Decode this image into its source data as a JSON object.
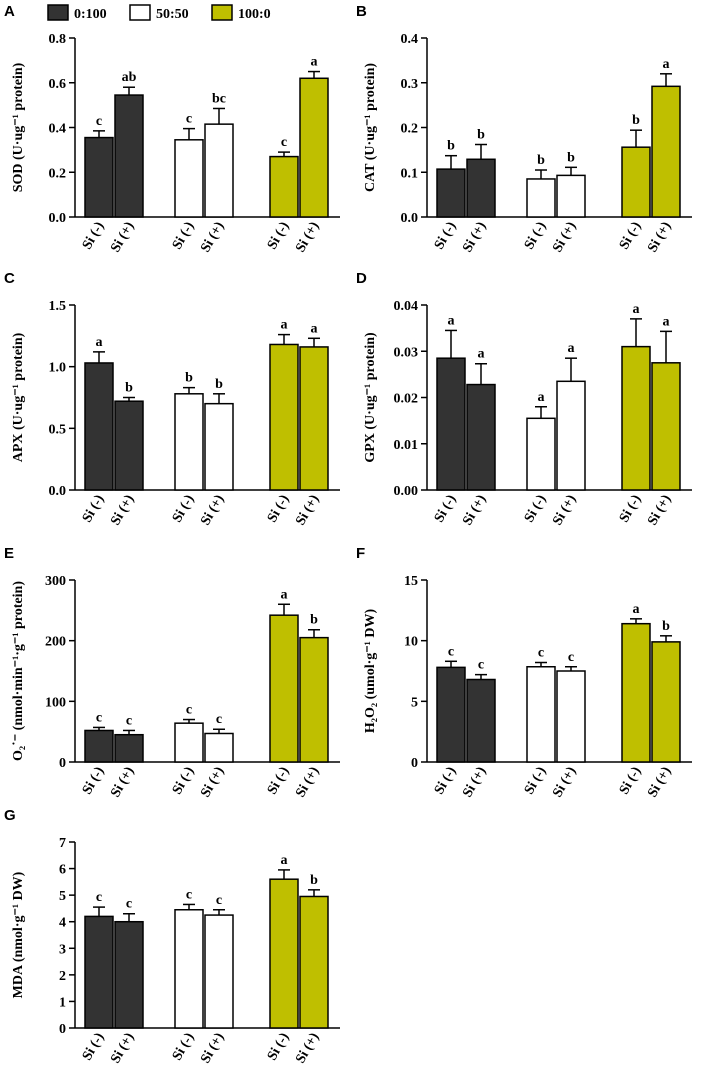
{
  "legend": [
    {
      "name": "0:100",
      "color": "#333333"
    },
    {
      "name": "50:50",
      "color": "#ffffff"
    },
    {
      "name": "100:0",
      "color": "#bfbf00"
    }
  ],
  "chart_data": [
    {
      "type": "bar",
      "panel": "A",
      "ylabel": "SOD (U·ug⁻¹ protein)",
      "categories": [
        "Si (-)",
        "Si (+)"
      ],
      "ylim": [
        0,
        0.8
      ],
      "yticks": [
        {
          "value": 0,
          "label": "0.0"
        },
        0.2,
        0.4,
        0.6,
        0.8
      ],
      "series": [
        {
          "values": [
            0.355,
            0.545
          ],
          "errors": [
            0.03,
            0.035
          ],
          "letters": [
            "c",
            "ab"
          ]
        },
        {
          "values": [
            0.345,
            0.415
          ],
          "errors": [
            0.05,
            0.07
          ],
          "letters": [
            "c",
            "bc"
          ]
        },
        {
          "values": [
            0.27,
            0.62
          ],
          "errors": [
            0.02,
            0.03
          ],
          "letters": [
            "c",
            "a"
          ]
        }
      ]
    },
    {
      "type": "bar",
      "panel": "B",
      "ylabel": "CAT (U·ug⁻¹ protein)",
      "categories": [
        "Si (-)",
        "Si (+)"
      ],
      "ylim": [
        0,
        0.4
      ],
      "yticks": [
        {
          "value": 0,
          "label": "0.0"
        },
        0.1,
        0.2,
        0.3,
        0.4
      ],
      "series": [
        {
          "values": [
            0.107,
            0.129
          ],
          "errors": [
            0.03,
            0.033
          ],
          "letters": [
            "b",
            "b"
          ]
        },
        {
          "values": [
            0.085,
            0.093
          ],
          "errors": [
            0.02,
            0.018
          ],
          "letters": [
            "b",
            "b"
          ]
        },
        {
          "values": [
            0.156,
            0.292
          ],
          "errors": [
            0.038,
            0.028
          ],
          "letters": [
            "b",
            "a"
          ]
        }
      ]
    },
    {
      "type": "bar",
      "panel": "C",
      "ylabel": "APX (U·ug⁻¹ protein)",
      "categories": [
        "Si (-)",
        "Si (+)"
      ],
      "ylim": [
        0,
        1.5
      ],
      "yticks": [
        {
          "value": 0,
          "label": "0.0"
        },
        0.5,
        {
          "value": 1,
          "label": "1.0"
        },
        1.5
      ],
      "series": [
        {
          "values": [
            1.03,
            0.72
          ],
          "errors": [
            0.09,
            0.03
          ],
          "letters": [
            "a",
            "b"
          ]
        },
        {
          "values": [
            0.78,
            0.7
          ],
          "errors": [
            0.05,
            0.08
          ],
          "letters": [
            "b",
            "b"
          ]
        },
        {
          "values": [
            1.18,
            1.16
          ],
          "errors": [
            0.08,
            0.07
          ],
          "letters": [
            "a",
            "a"
          ]
        }
      ]
    },
    {
      "type": "bar",
      "panel": "D",
      "ylabel": "GPX (U·ug⁻¹ protein)",
      "categories": [
        "Si (-)",
        "Si (+)"
      ],
      "ylim": [
        0,
        0.04
      ],
      "yticks": [
        {
          "value": 0,
          "label": "0.00"
        },
        0.01,
        0.02,
        0.03,
        0.04
      ],
      "series": [
        {
          "values": [
            0.0285,
            0.0228
          ],
          "errors": [
            0.006,
            0.0045
          ],
          "letters": [
            "a",
            "a"
          ]
        },
        {
          "values": [
            0.0155,
            0.0235
          ],
          "errors": [
            0.0025,
            0.005
          ],
          "letters": [
            "a",
            "a"
          ]
        },
        {
          "values": [
            0.031,
            0.0275
          ],
          "errors": [
            0.006,
            0.0068
          ],
          "letters": [
            "a",
            "a"
          ]
        }
      ]
    },
    {
      "type": "bar",
      "panel": "E",
      "ylabel": "O₂˙⁻ (nmol·min⁻¹·g⁻¹ protein)",
      "categories": [
        "Si (-)",
        "Si (+)"
      ],
      "ylim": [
        0,
        300
      ],
      "yticks": [
        0,
        100,
        200,
        300
      ],
      "series": [
        {
          "values": [
            52,
            45
          ],
          "errors": [
            5,
            7
          ],
          "letters": [
            "c",
            "c"
          ]
        },
        {
          "values": [
            64,
            47
          ],
          "errors": [
            6,
            7
          ],
          "letters": [
            "c",
            "c"
          ]
        },
        {
          "values": [
            242,
            205
          ],
          "errors": [
            18,
            13
          ],
          "letters": [
            "a",
            "b"
          ]
        }
      ]
    },
    {
      "type": "bar",
      "panel": "F",
      "ylabel": "H₂O₂ (umol·g⁻¹ DW)",
      "categories": [
        "Si (-)",
        "Si (+)"
      ],
      "ylim": [
        0,
        15
      ],
      "yticks": [
        0,
        5,
        10,
        15
      ],
      "series": [
        {
          "values": [
            7.8,
            6.8
          ],
          "errors": [
            0.5,
            0.4
          ],
          "letters": [
            "c",
            "c"
          ]
        },
        {
          "values": [
            7.85,
            7.5
          ],
          "errors": [
            0.35,
            0.35
          ],
          "letters": [
            "c",
            "c"
          ]
        },
        {
          "values": [
            11.4,
            9.9
          ],
          "errors": [
            0.4,
            0.5
          ],
          "letters": [
            "a",
            "b"
          ]
        }
      ]
    },
    {
      "type": "bar",
      "panel": "G",
      "ylabel": "MDA (nmol·g⁻¹ DW)",
      "categories": [
        "Si (-)",
        "Si (+)"
      ],
      "ylim": [
        0,
        7
      ],
      "yticks": [
        0,
        1,
        2,
        3,
        4,
        5,
        6,
        7
      ],
      "series": [
        {
          "values": [
            4.2,
            4.0
          ],
          "errors": [
            0.35,
            0.3
          ],
          "letters": [
            "c",
            "c"
          ]
        },
        {
          "values": [
            4.45,
            4.25
          ],
          "errors": [
            0.2,
            0.2
          ],
          "letters": [
            "c",
            "c"
          ]
        },
        {
          "values": [
            5.6,
            4.95
          ],
          "errors": [
            0.35,
            0.25
          ],
          "letters": [
            "a",
            "b"
          ]
        }
      ]
    }
  ]
}
